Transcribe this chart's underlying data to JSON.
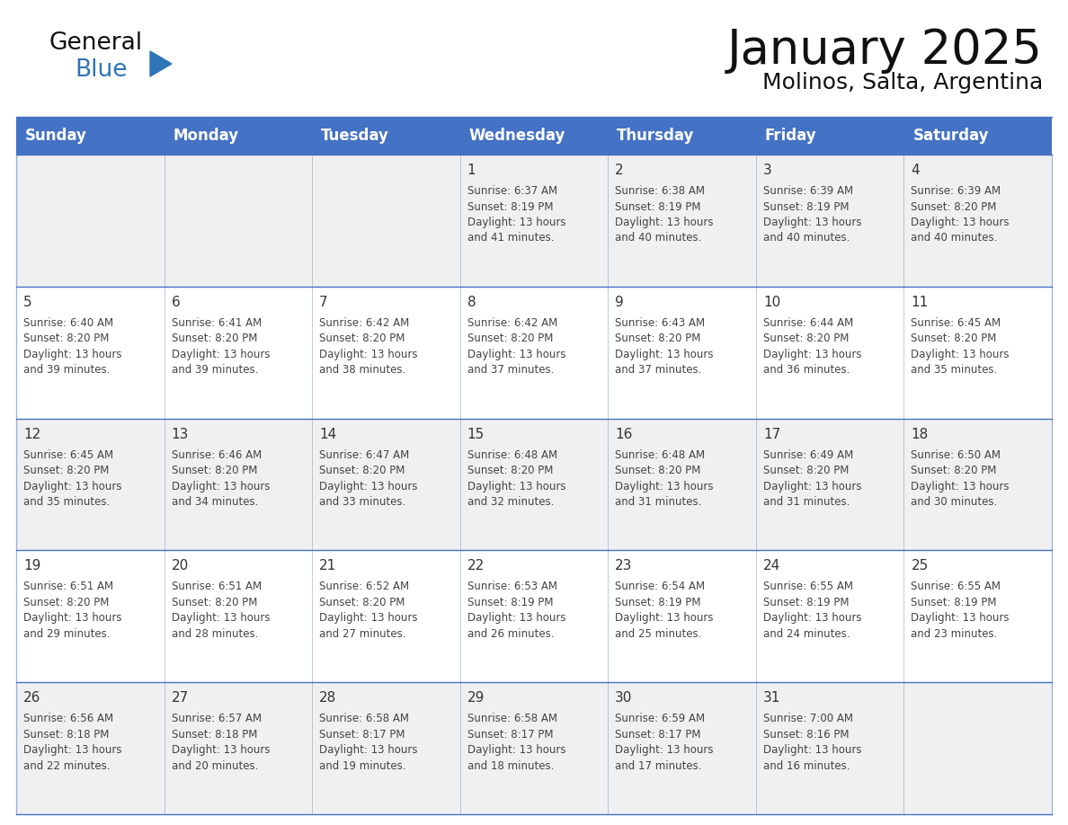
{
  "title": "January 2025",
  "subtitle": "Molinos, Salta, Argentina",
  "days_of_week": [
    "Sunday",
    "Monday",
    "Tuesday",
    "Wednesday",
    "Thursday",
    "Friday",
    "Saturday"
  ],
  "header_bg": "#4472C4",
  "header_text_color": "#FFFFFF",
  "cell_bg_white": "#FFFFFF",
  "cell_bg_gray": "#F0F0F0",
  "cell_border_color": "#4472C4",
  "day_number_color": "#333333",
  "cell_text_color": "#444444",
  "title_color": "#111111",
  "subtitle_color": "#111111",
  "logo_general_color": "#111111",
  "logo_blue_color": "#2E75B6",
  "calendar_data": [
    {
      "day": 1,
      "col": 3,
      "row": 0,
      "sunrise": "6:37 AM",
      "sunset": "8:19 PM",
      "daylight_hours": 13,
      "daylight_minutes": 41
    },
    {
      "day": 2,
      "col": 4,
      "row": 0,
      "sunrise": "6:38 AM",
      "sunset": "8:19 PM",
      "daylight_hours": 13,
      "daylight_minutes": 40
    },
    {
      "day": 3,
      "col": 5,
      "row": 0,
      "sunrise": "6:39 AM",
      "sunset": "8:19 PM",
      "daylight_hours": 13,
      "daylight_minutes": 40
    },
    {
      "day": 4,
      "col": 6,
      "row": 0,
      "sunrise": "6:39 AM",
      "sunset": "8:20 PM",
      "daylight_hours": 13,
      "daylight_minutes": 40
    },
    {
      "day": 5,
      "col": 0,
      "row": 1,
      "sunrise": "6:40 AM",
      "sunset": "8:20 PM",
      "daylight_hours": 13,
      "daylight_minutes": 39
    },
    {
      "day": 6,
      "col": 1,
      "row": 1,
      "sunrise": "6:41 AM",
      "sunset": "8:20 PM",
      "daylight_hours": 13,
      "daylight_minutes": 39
    },
    {
      "day": 7,
      "col": 2,
      "row": 1,
      "sunrise": "6:42 AM",
      "sunset": "8:20 PM",
      "daylight_hours": 13,
      "daylight_minutes": 38
    },
    {
      "day": 8,
      "col": 3,
      "row": 1,
      "sunrise": "6:42 AM",
      "sunset": "8:20 PM",
      "daylight_hours": 13,
      "daylight_minutes": 37
    },
    {
      "day": 9,
      "col": 4,
      "row": 1,
      "sunrise": "6:43 AM",
      "sunset": "8:20 PM",
      "daylight_hours": 13,
      "daylight_minutes": 37
    },
    {
      "day": 10,
      "col": 5,
      "row": 1,
      "sunrise": "6:44 AM",
      "sunset": "8:20 PM",
      "daylight_hours": 13,
      "daylight_minutes": 36
    },
    {
      "day": 11,
      "col": 6,
      "row": 1,
      "sunrise": "6:45 AM",
      "sunset": "8:20 PM",
      "daylight_hours": 13,
      "daylight_minutes": 35
    },
    {
      "day": 12,
      "col": 0,
      "row": 2,
      "sunrise": "6:45 AM",
      "sunset": "8:20 PM",
      "daylight_hours": 13,
      "daylight_minutes": 35
    },
    {
      "day": 13,
      "col": 1,
      "row": 2,
      "sunrise": "6:46 AM",
      "sunset": "8:20 PM",
      "daylight_hours": 13,
      "daylight_minutes": 34
    },
    {
      "day": 14,
      "col": 2,
      "row": 2,
      "sunrise": "6:47 AM",
      "sunset": "8:20 PM",
      "daylight_hours": 13,
      "daylight_minutes": 33
    },
    {
      "day": 15,
      "col": 3,
      "row": 2,
      "sunrise": "6:48 AM",
      "sunset": "8:20 PM",
      "daylight_hours": 13,
      "daylight_minutes": 32
    },
    {
      "day": 16,
      "col": 4,
      "row": 2,
      "sunrise": "6:48 AM",
      "sunset": "8:20 PM",
      "daylight_hours": 13,
      "daylight_minutes": 31
    },
    {
      "day": 17,
      "col": 5,
      "row": 2,
      "sunrise": "6:49 AM",
      "sunset": "8:20 PM",
      "daylight_hours": 13,
      "daylight_minutes": 31
    },
    {
      "day": 18,
      "col": 6,
      "row": 2,
      "sunrise": "6:50 AM",
      "sunset": "8:20 PM",
      "daylight_hours": 13,
      "daylight_minutes": 30
    },
    {
      "day": 19,
      "col": 0,
      "row": 3,
      "sunrise": "6:51 AM",
      "sunset": "8:20 PM",
      "daylight_hours": 13,
      "daylight_minutes": 29
    },
    {
      "day": 20,
      "col": 1,
      "row": 3,
      "sunrise": "6:51 AM",
      "sunset": "8:20 PM",
      "daylight_hours": 13,
      "daylight_minutes": 28
    },
    {
      "day": 21,
      "col": 2,
      "row": 3,
      "sunrise": "6:52 AM",
      "sunset": "8:20 PM",
      "daylight_hours": 13,
      "daylight_minutes": 27
    },
    {
      "day": 22,
      "col": 3,
      "row": 3,
      "sunrise": "6:53 AM",
      "sunset": "8:19 PM",
      "daylight_hours": 13,
      "daylight_minutes": 26
    },
    {
      "day": 23,
      "col": 4,
      "row": 3,
      "sunrise": "6:54 AM",
      "sunset": "8:19 PM",
      "daylight_hours": 13,
      "daylight_minutes": 25
    },
    {
      "day": 24,
      "col": 5,
      "row": 3,
      "sunrise": "6:55 AM",
      "sunset": "8:19 PM",
      "daylight_hours": 13,
      "daylight_minutes": 24
    },
    {
      "day": 25,
      "col": 6,
      "row": 3,
      "sunrise": "6:55 AM",
      "sunset": "8:19 PM",
      "daylight_hours": 13,
      "daylight_minutes": 23
    },
    {
      "day": 26,
      "col": 0,
      "row": 4,
      "sunrise": "6:56 AM",
      "sunset": "8:18 PM",
      "daylight_hours": 13,
      "daylight_minutes": 22
    },
    {
      "day": 27,
      "col": 1,
      "row": 4,
      "sunrise": "6:57 AM",
      "sunset": "8:18 PM",
      "daylight_hours": 13,
      "daylight_minutes": 20
    },
    {
      "day": 28,
      "col": 2,
      "row": 4,
      "sunrise": "6:58 AM",
      "sunset": "8:17 PM",
      "daylight_hours": 13,
      "daylight_minutes": 19
    },
    {
      "day": 29,
      "col": 3,
      "row": 4,
      "sunrise": "6:58 AM",
      "sunset": "8:17 PM",
      "daylight_hours": 13,
      "daylight_minutes": 18
    },
    {
      "day": 30,
      "col": 4,
      "row": 4,
      "sunrise": "6:59 AM",
      "sunset": "8:17 PM",
      "daylight_hours": 13,
      "daylight_minutes": 17
    },
    {
      "day": 31,
      "col": 5,
      "row": 4,
      "sunrise": "7:00 AM",
      "sunset": "8:16 PM",
      "daylight_hours": 13,
      "daylight_minutes": 16
    }
  ]
}
